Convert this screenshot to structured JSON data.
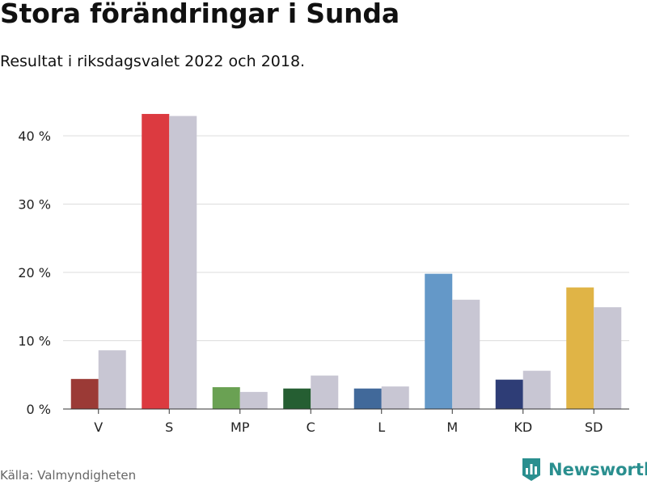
{
  "header": {
    "title": "Stora förändringar i Sunda",
    "subtitle": "Resultat i riksdagsvalet 2022 och 2018."
  },
  "footer": {
    "source": "Källa: Valmyndigheten",
    "brand": "Newsworthy"
  },
  "colors": {
    "previous": "#c8c6d3",
    "grid": "#dddddd",
    "brand": "#2a8f8f"
  },
  "chart_data": {
    "type": "bar",
    "categories": [
      "V",
      "S",
      "MP",
      "C",
      "L",
      "M",
      "KD",
      "SD"
    ],
    "series": [
      {
        "values": [
          4.4,
          43.2,
          3.2,
          3.0,
          3.0,
          19.8,
          4.3,
          17.8
        ],
        "colors": [
          "#9b3a36",
          "#dc3a40",
          "#6aa153",
          "#255e32",
          "#41699a",
          "#6498c8",
          "#2e3d76",
          "#e0b446"
        ]
      },
      {
        "values": [
          8.6,
          42.9,
          2.5,
          4.9,
          3.3,
          16.0,
          5.6,
          14.9
        ]
      }
    ],
    "yticks": [
      0,
      10,
      20,
      30,
      40
    ],
    "ytick_labels": [
      "0 %",
      "10 %",
      "20 %",
      "30 %",
      "40 %"
    ],
    "ylim": [
      0,
      45
    ],
    "grid": true
  }
}
